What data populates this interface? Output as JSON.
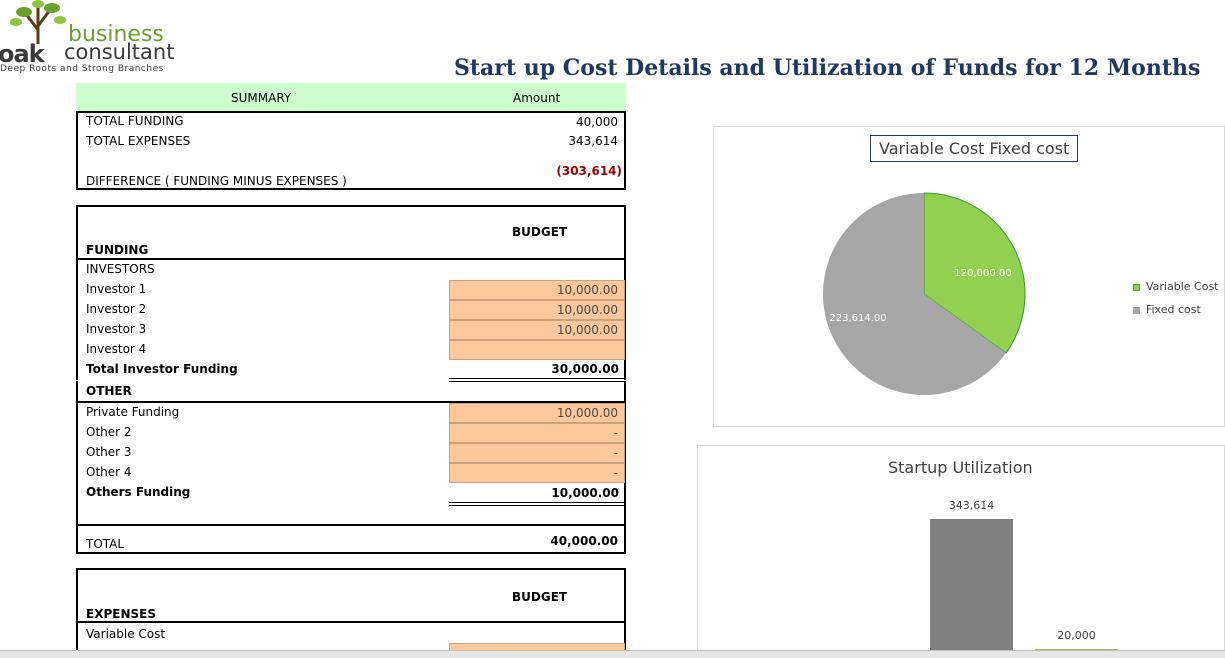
{
  "logo": {
    "word1": "business",
    "oak": "oak",
    "word2": "consultant",
    "tagline": "Deep Roots and Strong Branches"
  },
  "title": "Start up Cost Details and Utilization of Funds for 12 Months",
  "summary": {
    "col1": "SUMMARY",
    "col2": "Amount",
    "rows": [
      {
        "label": "TOTAL FUNDING",
        "value": "40,000"
      },
      {
        "label": "TOTAL EXPENSES",
        "value": "343,614"
      },
      {
        "label": "DIFFERENCE  ( FUNDING MINUS EXPENSES )",
        "value": "(303,614)"
      }
    ]
  },
  "funding": {
    "budget": "BUDGET",
    "heading": "FUNDING",
    "investors_label": "INVESTORS",
    "investors": [
      {
        "label": "Investor 1",
        "value": "10,000.00"
      },
      {
        "label": "Investor 2",
        "value": "10,000.00"
      },
      {
        "label": "Investor 3",
        "value": "10,000.00"
      },
      {
        "label": "Investor 4",
        "value": ""
      }
    ],
    "total_investor": {
      "label": "Total Investor Funding",
      "value": "30,000.00"
    },
    "other_label": "OTHER",
    "others": [
      {
        "label": "Private Funding",
        "value": "10,000.00"
      },
      {
        "label": "Other 2",
        "value": "-"
      },
      {
        "label": "Other 3",
        "value": "-"
      },
      {
        "label": "Other 4",
        "value": "-"
      }
    ],
    "others_total": {
      "label": "Others Funding",
      "value": "10,000.00"
    },
    "total": {
      "label": "TOTAL",
      "value": "40,000.00"
    }
  },
  "expenses": {
    "budget": "BUDGET",
    "heading": "EXPENSES",
    "first_row": "Variable Cost"
  },
  "chart_data": [
    {
      "type": "pie",
      "title": "Variable Cost    Fixed cost",
      "categories": [
        "Variable Cost",
        "Fixed cost"
      ],
      "values": [
        120000.0,
        223614.0
      ],
      "value_labels": [
        "120,000.00",
        "223,614.00"
      ],
      "colors": [
        "#92d050",
        "#a6a6a6"
      ],
      "legend": "right"
    },
    {
      "type": "bar",
      "title": "Startup Utilization",
      "values": [
        343614,
        20000
      ],
      "value_labels": [
        "343,614",
        "20,000"
      ],
      "colors": [
        "#808080",
        "#9bbb59"
      ]
    }
  ]
}
